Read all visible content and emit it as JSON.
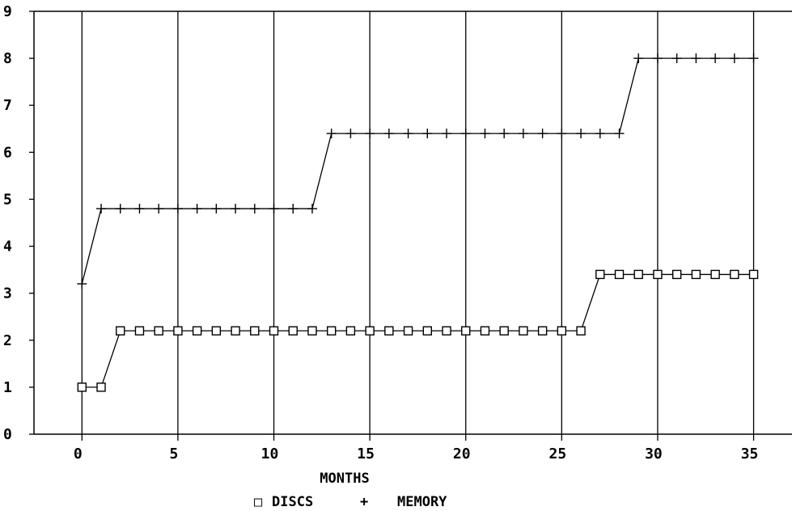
{
  "chart_data": {
    "type": "line",
    "xlabel": "MONTHS",
    "ylabel": "",
    "title": "",
    "xlim": [
      -2.5,
      37
    ],
    "ylim": [
      0,
      9
    ],
    "x_ticks": [
      0,
      5,
      10,
      15,
      20,
      25,
      30,
      35
    ],
    "y_ticks": [
      0,
      1,
      2,
      3,
      4,
      5,
      6,
      7,
      8,
      9
    ],
    "grid": "vertical",
    "legend_position": "bottom",
    "series": [
      {
        "name": "DISCS",
        "marker": "square",
        "x": [
          0,
          1,
          2,
          3,
          4,
          5,
          6,
          7,
          8,
          9,
          10,
          11,
          12,
          13,
          14,
          15,
          16,
          17,
          18,
          19,
          20,
          21,
          22,
          23,
          24,
          25,
          26,
          27,
          28,
          29,
          30,
          31,
          32,
          33,
          34,
          35
        ],
        "y": [
          1,
          1,
          2.2,
          2.2,
          2.2,
          2.2,
          2.2,
          2.2,
          2.2,
          2.2,
          2.2,
          2.2,
          2.2,
          2.2,
          2.2,
          2.2,
          2.2,
          2.2,
          2.2,
          2.2,
          2.2,
          2.2,
          2.2,
          2.2,
          2.2,
          2.2,
          2.2,
          3.4,
          3.4,
          3.4,
          3.4,
          3.4,
          3.4,
          3.4,
          3.4,
          3.4
        ]
      },
      {
        "name": "MEMORY",
        "marker": "plus",
        "x": [
          0,
          1,
          2,
          3,
          4,
          5,
          6,
          7,
          8,
          9,
          10,
          11,
          12,
          13,
          14,
          15,
          16,
          17,
          18,
          19,
          20,
          21,
          22,
          23,
          24,
          25,
          26,
          27,
          28,
          29,
          30,
          31,
          32,
          33,
          34,
          35
        ],
        "y": [
          3.2,
          4.8,
          4.8,
          4.8,
          4.8,
          4.8,
          4.8,
          4.8,
          4.8,
          4.8,
          4.8,
          4.8,
          4.8,
          6.4,
          6.4,
          6.4,
          6.4,
          6.4,
          6.4,
          6.4,
          6.4,
          6.4,
          6.4,
          6.4,
          6.4,
          6.4,
          6.4,
          6.4,
          6.4,
          8,
          8,
          8,
          8,
          8,
          8,
          8
        ]
      }
    ],
    "legend": [
      {
        "symbol": "□",
        "label": "DISCS"
      },
      {
        "symbol": "+",
        "label": "MEMORY"
      }
    ]
  }
}
